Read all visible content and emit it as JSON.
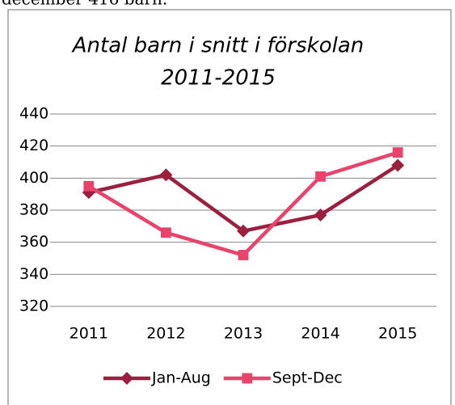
{
  "caption": "december 416 barn.",
  "chart_data": {
    "type": "line",
    "title": [
      "Antal barn i snitt i förskolan",
      "2011-2015"
    ],
    "categories": [
      "2011",
      "2012",
      "2013",
      "2014",
      "2015"
    ],
    "series": [
      {
        "name": "Jan-Aug",
        "color": "#9b2040",
        "marker": "diamond",
        "values": [
          391,
          402,
          367,
          377,
          408
        ]
      },
      {
        "name": "Sept-Dec",
        "color": "#e8436a",
        "marker": "square",
        "values": [
          395,
          366,
          352,
          401,
          416
        ]
      }
    ],
    "ylim": [
      320,
      440
    ],
    "yticks": [
      320,
      340,
      360,
      380,
      400,
      420,
      440
    ],
    "grid": true,
    "legend": "bottom"
  }
}
